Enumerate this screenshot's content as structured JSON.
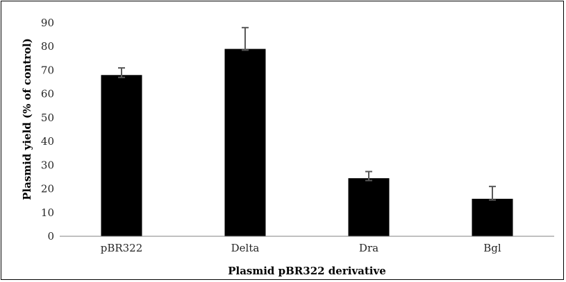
{
  "chart_data": {
    "type": "bar",
    "title": "",
    "xlabel": "Plasmid pBR322 derivative",
    "ylabel": "Plasmid yield (% of control)",
    "categories": [
      "pBR322",
      "Delta",
      "Dra",
      "Bgl"
    ],
    "values": [
      68,
      79,
      24.5,
      15.8
    ],
    "error_upper": [
      71,
      88,
      27.3,
      21
    ],
    "error_lower": [
      67,
      78.5,
      23.5,
      15.3
    ],
    "ylim": [
      0,
      90
    ],
    "yticks": [
      0,
      10,
      20,
      30,
      40,
      50,
      60,
      70,
      80,
      90
    ],
    "ytick_labels": [
      "0",
      "10",
      "20",
      "30",
      "40",
      "50",
      "60",
      "70",
      "80",
      "90"
    ],
    "grid": false,
    "legend": "none",
    "colors": {
      "bar": "#000000",
      "error_bar": "#595959",
      "axis": "#808080",
      "frame": "#000000"
    }
  }
}
